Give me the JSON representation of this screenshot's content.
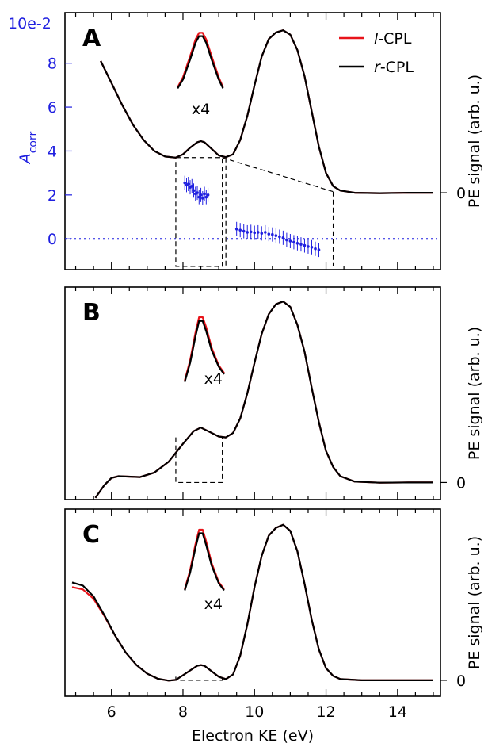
{
  "chart_data": {
    "type": "line",
    "xlabel": "Electron KE (eV)",
    "xlim": [
      4.7,
      15.2
    ],
    "xticks": [
      6,
      8,
      10,
      12,
      14
    ],
    "colors": {
      "l_cpl": "#e8141a",
      "r_cpl": "#000000",
      "asym": "#1f1fe0"
    },
    "legend": {
      "position": "top-right",
      "entries": [
        {
          "prefix": "l",
          "suffix": "-CPL",
          "color": "#e8141a"
        },
        {
          "prefix": "r",
          "suffix": "-CPL",
          "color": "#000000"
        }
      ]
    },
    "panels": [
      {
        "id": "A",
        "label": "A",
        "right_ylabel": "PE signal (arb. u.)",
        "right_zero": "0",
        "left_axis": {
          "label_main": "A",
          "label_sub": "corr",
          "top_label": "10e-2",
          "ticks": [
            {
              "v": 0,
              "t": "0"
            },
            {
              "v": 2,
              "t": "2"
            },
            {
              "v": 4,
              "t": "4"
            },
            {
              "v": 6,
              "t": "6"
            },
            {
              "v": 8,
              "t": "8"
            }
          ],
          "ylim": [
            -1.4,
            10.3
          ]
        },
        "inset_label": "x4",
        "r_cpl": [
          [
            5.7,
            8.1
          ],
          [
            6.0,
            7.1
          ],
          [
            6.3,
            6.1
          ],
          [
            6.6,
            5.2
          ],
          [
            6.9,
            4.5
          ],
          [
            7.2,
            4.0
          ],
          [
            7.5,
            3.75
          ],
          [
            7.8,
            3.7
          ],
          [
            8.0,
            3.85
          ],
          [
            8.2,
            4.15
          ],
          [
            8.4,
            4.4
          ],
          [
            8.5,
            4.45
          ],
          [
            8.6,
            4.4
          ],
          [
            8.8,
            4.1
          ],
          [
            9.0,
            3.8
          ],
          [
            9.2,
            3.72
          ],
          [
            9.4,
            3.85
          ],
          [
            9.6,
            4.5
          ],
          [
            9.8,
            5.6
          ],
          [
            10.0,
            7.0
          ],
          [
            10.2,
            8.3
          ],
          [
            10.4,
            9.1
          ],
          [
            10.6,
            9.4
          ],
          [
            10.8,
            9.5
          ],
          [
            11.0,
            9.3
          ],
          [
            11.2,
            8.6
          ],
          [
            11.4,
            7.4
          ],
          [
            11.6,
            5.8
          ],
          [
            11.8,
            4.2
          ],
          [
            12.0,
            3.0
          ],
          [
            12.2,
            2.4
          ],
          [
            12.4,
            2.2
          ],
          [
            12.8,
            2.1
          ],
          [
            13.5,
            2.08
          ],
          [
            14.3,
            2.1
          ],
          [
            15.0,
            2.1
          ]
        ],
        "l_cpl_inset": [
          [
            7.85,
            0.5
          ],
          [
            8.0,
            0.95
          ],
          [
            8.2,
            1.9
          ],
          [
            8.35,
            2.65
          ],
          [
            8.45,
            2.95
          ],
          [
            8.55,
            2.95
          ],
          [
            8.65,
            2.65
          ],
          [
            8.8,
            1.9
          ],
          [
            9.0,
            0.95
          ],
          [
            9.12,
            0.5
          ]
        ],
        "r_cpl_inset": [
          [
            7.85,
            0.45
          ],
          [
            8.0,
            0.85
          ],
          [
            8.2,
            1.75
          ],
          [
            8.35,
            2.5
          ],
          [
            8.45,
            2.8
          ],
          [
            8.55,
            2.8
          ],
          [
            8.65,
            2.5
          ],
          [
            8.8,
            1.75
          ],
          [
            9.0,
            0.85
          ],
          [
            9.12,
            0.45
          ]
        ],
        "asymmetry": [
          [
            8.05,
            2.55
          ],
          [
            8.1,
            2.45
          ],
          [
            8.15,
            2.5
          ],
          [
            8.2,
            2.35
          ],
          [
            8.25,
            2.4
          ],
          [
            8.3,
            2.2
          ],
          [
            8.35,
            2.05
          ],
          [
            8.4,
            2.1
          ],
          [
            8.45,
            1.9
          ],
          [
            8.5,
            2.0
          ],
          [
            8.55,
            1.85
          ],
          [
            8.6,
            2.05
          ],
          [
            8.65,
            1.9
          ],
          [
            8.7,
            2.0
          ],
          [
            9.5,
            0.45
          ],
          [
            9.6,
            0.4
          ],
          [
            9.7,
            0.35
          ],
          [
            9.8,
            0.3
          ],
          [
            9.9,
            0.32
          ],
          [
            10.0,
            0.28
          ],
          [
            10.1,
            0.3
          ],
          [
            10.2,
            0.25
          ],
          [
            10.3,
            0.3
          ],
          [
            10.4,
            0.22
          ],
          [
            10.5,
            0.2
          ],
          [
            10.6,
            0.15
          ],
          [
            10.7,
            0.1
          ],
          [
            10.8,
            0.05
          ],
          [
            10.9,
            -0.05
          ],
          [
            11.0,
            -0.1
          ],
          [
            11.1,
            -0.15
          ],
          [
            11.2,
            -0.2
          ],
          [
            11.3,
            -0.25
          ],
          [
            11.4,
            -0.3
          ],
          [
            11.5,
            -0.35
          ],
          [
            11.6,
            -0.38
          ],
          [
            11.7,
            -0.45
          ],
          [
            11.8,
            -0.5
          ]
        ],
        "zoom_box": [
          7.8,
          9.1
        ],
        "zoom_lines": [
          9.2,
          12.2
        ]
      },
      {
        "id": "B",
        "label": "B",
        "right_ylabel": "PE signal (arb. u.)",
        "right_zero": "0",
        "inset_label": "x4",
        "r_cpl": [
          [
            5.55,
            -0.8
          ],
          [
            5.8,
            -0.1
          ],
          [
            6.0,
            0.3
          ],
          [
            6.2,
            0.4
          ],
          [
            6.4,
            0.38
          ],
          [
            6.8,
            0.35
          ],
          [
            7.2,
            0.6
          ],
          [
            7.6,
            1.2
          ],
          [
            8.0,
            2.2
          ],
          [
            8.3,
            2.9
          ],
          [
            8.5,
            3.1
          ],
          [
            8.7,
            2.9
          ],
          [
            9.0,
            2.6
          ],
          [
            9.2,
            2.55
          ],
          [
            9.4,
            2.8
          ],
          [
            9.6,
            3.6
          ],
          [
            9.8,
            5.0
          ],
          [
            10.0,
            6.7
          ],
          [
            10.2,
            8.3
          ],
          [
            10.4,
            9.4
          ],
          [
            10.6,
            9.95
          ],
          [
            10.8,
            10.1
          ],
          [
            11.0,
            9.8
          ],
          [
            11.2,
            8.8
          ],
          [
            11.4,
            7.3
          ],
          [
            11.6,
            5.3
          ],
          [
            11.8,
            3.4
          ],
          [
            12.0,
            1.8
          ],
          [
            12.2,
            0.9
          ],
          [
            12.4,
            0.4
          ],
          [
            12.8,
            0.1
          ],
          [
            13.5,
            0.04
          ],
          [
            14.3,
            0.05
          ],
          [
            15.0,
            0.05
          ]
        ],
        "l_cpl_inset": [
          [
            8.05,
            0.5
          ],
          [
            8.2,
            1.3
          ],
          [
            8.35,
            2.4
          ],
          [
            8.45,
            3.0
          ],
          [
            8.55,
            3.0
          ],
          [
            8.65,
            2.6
          ],
          [
            8.8,
            1.8
          ],
          [
            9.0,
            1.1
          ],
          [
            9.15,
            0.8
          ]
        ],
        "r_cpl_inset": [
          [
            8.05,
            0.45
          ],
          [
            8.2,
            1.2
          ],
          [
            8.35,
            2.25
          ],
          [
            8.45,
            2.85
          ],
          [
            8.55,
            2.85
          ],
          [
            8.65,
            2.45
          ],
          [
            8.8,
            1.7
          ],
          [
            9.0,
            1.05
          ],
          [
            9.15,
            0.75
          ]
        ],
        "zoom_box": [
          7.8,
          9.1
        ]
      },
      {
        "id": "C",
        "label": "C",
        "right_ylabel": "PE signal (arb. u.)",
        "right_zero": "0",
        "inset_label": "x4",
        "r_cpl": [
          [
            4.9,
            6.3
          ],
          [
            5.2,
            6.1
          ],
          [
            5.5,
            5.4
          ],
          [
            5.8,
            4.2
          ],
          [
            6.1,
            2.9
          ],
          [
            6.4,
            1.8
          ],
          [
            6.7,
            1.0
          ],
          [
            7.0,
            0.45
          ],
          [
            7.3,
            0.12
          ],
          [
            7.6,
            0.0
          ],
          [
            7.8,
            0.05
          ],
          [
            8.0,
            0.35
          ],
          [
            8.2,
            0.65
          ],
          [
            8.4,
            0.95
          ],
          [
            8.5,
            1.0
          ],
          [
            8.6,
            0.95
          ],
          [
            8.8,
            0.6
          ],
          [
            9.0,
            0.25
          ],
          [
            9.2,
            0.1
          ],
          [
            9.4,
            0.4
          ],
          [
            9.6,
            1.6
          ],
          [
            9.8,
            3.6
          ],
          [
            10.0,
            6.0
          ],
          [
            10.2,
            8.0
          ],
          [
            10.4,
            9.3
          ],
          [
            10.6,
            9.8
          ],
          [
            10.8,
            10.0
          ],
          [
            11.0,
            9.6
          ],
          [
            11.2,
            8.3
          ],
          [
            11.4,
            6.2
          ],
          [
            11.6,
            3.9
          ],
          [
            11.8,
            2.0
          ],
          [
            12.0,
            0.8
          ],
          [
            12.2,
            0.3
          ],
          [
            12.4,
            0.1
          ],
          [
            13.0,
            0.02
          ],
          [
            14.0,
            0.02
          ],
          [
            15.0,
            0.02
          ]
        ],
        "l_cpl": [
          [
            4.9,
            6.0
          ],
          [
            5.2,
            5.85
          ],
          [
            5.5,
            5.25
          ],
          [
            5.8,
            4.15
          ],
          [
            6.1,
            2.9
          ],
          [
            6.4,
            1.8
          ],
          [
            6.7,
            1.0
          ],
          [
            7.0,
            0.45
          ],
          [
            7.3,
            0.12
          ],
          [
            7.6,
            0.0
          ],
          [
            7.8,
            0.05
          ],
          [
            8.0,
            0.35
          ],
          [
            8.2,
            0.65
          ],
          [
            8.4,
            0.95
          ],
          [
            8.5,
            1.0
          ],
          [
            8.6,
            0.95
          ],
          [
            8.8,
            0.6
          ],
          [
            9.0,
            0.25
          ],
          [
            9.2,
            0.1
          ],
          [
            9.4,
            0.4
          ],
          [
            9.6,
            1.6
          ],
          [
            9.8,
            3.6
          ],
          [
            10.0,
            6.0
          ],
          [
            10.2,
            8.0
          ],
          [
            10.4,
            9.3
          ],
          [
            10.6,
            9.8
          ],
          [
            10.8,
            10.0
          ],
          [
            11.0,
            9.6
          ],
          [
            11.2,
            8.3
          ],
          [
            11.4,
            6.2
          ],
          [
            11.6,
            3.9
          ],
          [
            11.8,
            2.0
          ],
          [
            12.0,
            0.8
          ],
          [
            12.2,
            0.3
          ],
          [
            12.4,
            0.1
          ],
          [
            13.0,
            0.02
          ],
          [
            14.0,
            0.02
          ],
          [
            15.0,
            0.02
          ]
        ],
        "l_cpl_inset": [
          [
            8.05,
            0.5
          ],
          [
            8.2,
            1.3
          ],
          [
            8.35,
            2.4
          ],
          [
            8.45,
            3.0
          ],
          [
            8.55,
            3.0
          ],
          [
            8.65,
            2.5
          ],
          [
            8.8,
            1.6
          ],
          [
            9.0,
            0.8
          ],
          [
            9.15,
            0.5
          ]
        ],
        "r_cpl_inset": [
          [
            8.05,
            0.45
          ],
          [
            8.2,
            1.2
          ],
          [
            8.35,
            2.25
          ],
          [
            8.45,
            2.85
          ],
          [
            8.55,
            2.85
          ],
          [
            8.65,
            2.35
          ],
          [
            8.8,
            1.5
          ],
          [
            9.0,
            0.75
          ],
          [
            9.15,
            0.45
          ]
        ],
        "zoom_box": [
          7.8,
          9.1
        ]
      }
    ]
  }
}
